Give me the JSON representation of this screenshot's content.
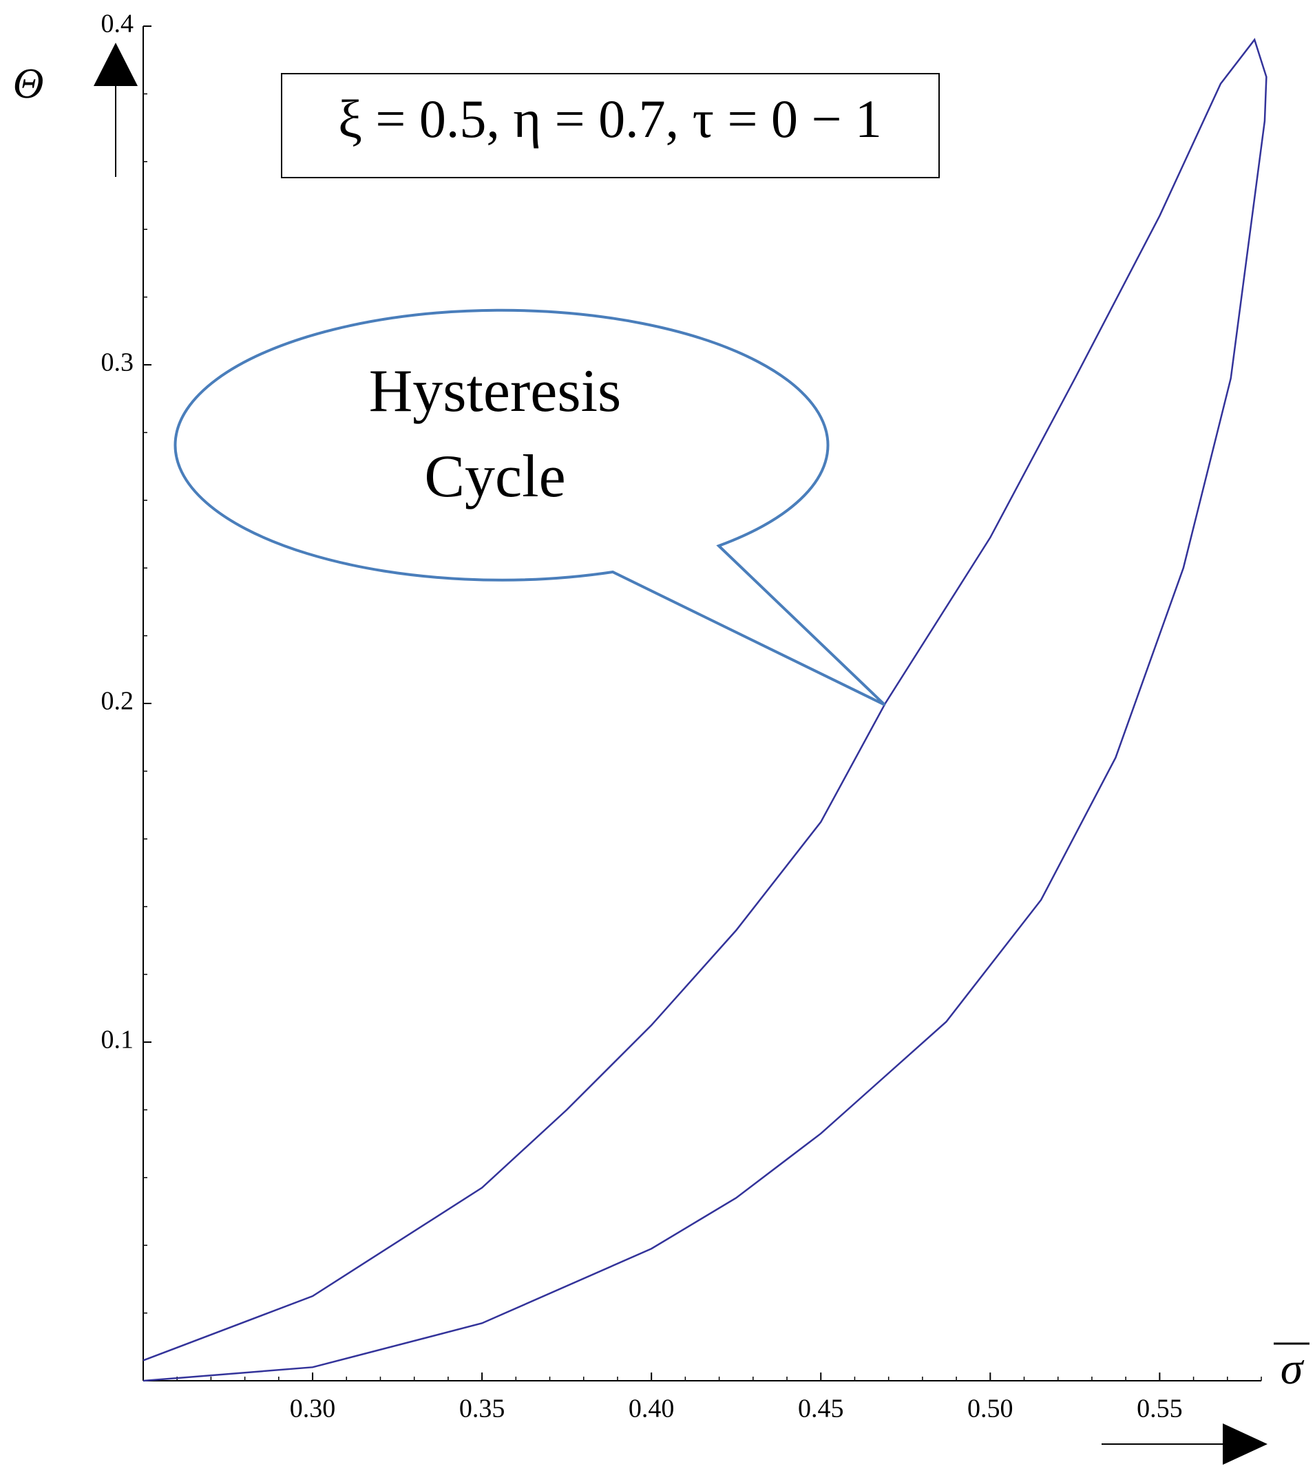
{
  "chart_data": {
    "type": "line",
    "ylabel": "Θ",
    "xlabel": "σ",
    "annotation": "ξ = 0.5, η = 0.7, τ = 0 − 1",
    "callout": [
      "Hysteresis",
      "Cycle"
    ],
    "xlim": [
      0.25,
      0.58
    ],
    "ylim": [
      0,
      0.4
    ],
    "xticks": [
      {
        "value": 0.3,
        "label": "0.30"
      },
      {
        "value": 0.35,
        "label": "0.35"
      },
      {
        "value": 0.4,
        "label": "0.40"
      },
      {
        "value": 0.45,
        "label": "0.45"
      },
      {
        "value": 0.5,
        "label": "0.50"
      },
      {
        "value": 0.55,
        "label": "0.55"
      }
    ],
    "yticks": [
      0.1,
      0.2,
      0.3,
      0.4
    ],
    "minor_divisions": 5,
    "series": [
      {
        "color": "#33339a",
        "x": [
          0.25,
          0.3,
          0.35,
          0.375,
          0.4,
          0.425,
          0.45,
          0.469,
          0.5,
          0.525,
          0.55,
          0.568,
          0.578,
          0.5815,
          0.581,
          0.571,
          0.557,
          0.537,
          0.515,
          0.487,
          0.45,
          0.425,
          0.4,
          0.35,
          0.3,
          0.25
        ],
        "values": [
          0.006,
          0.025,
          0.057,
          0.08,
          0.105,
          0.133,
          0.165,
          0.2,
          0.249,
          0.296,
          0.344,
          0.383,
          0.396,
          0.385,
          0.372,
          0.296,
          0.24,
          0.184,
          0.142,
          0.106,
          0.073,
          0.054,
          0.039,
          0.017,
          0.004,
          0.0
        ]
      }
    ]
  }
}
